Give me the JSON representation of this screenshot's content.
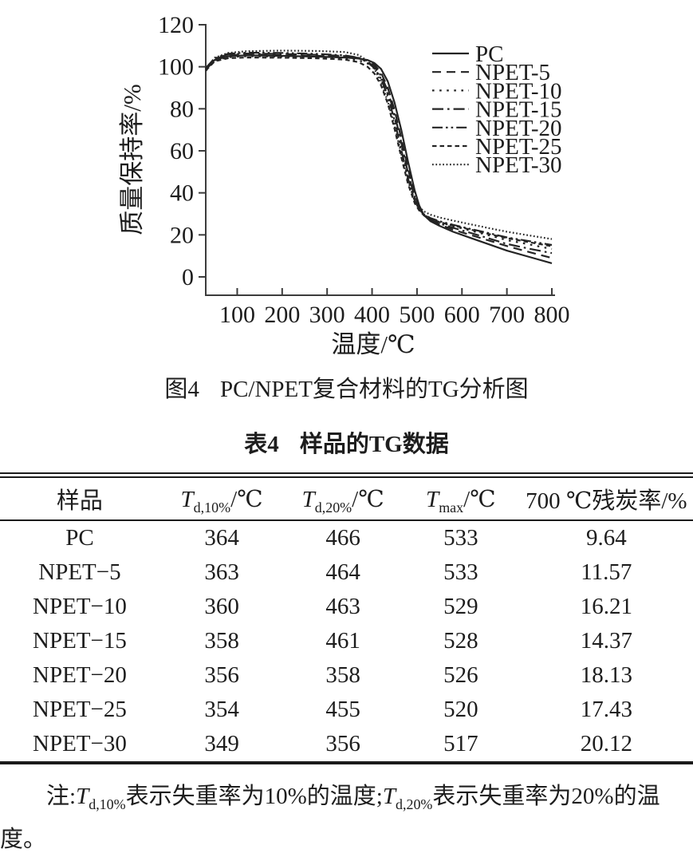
{
  "figure": {
    "caption_label": "图4",
    "caption_text": "PC/NPET复合材料的TG分析图"
  },
  "chart_data": {
    "type": "line",
    "title": "",
    "xlabel": "温度/℃",
    "ylabel": "质量保持率/%",
    "xlim": [
      30,
      800
    ],
    "ylim": [
      -9,
      120
    ],
    "x_ticks": [
      100,
      200,
      300,
      400,
      500,
      600,
      700,
      800
    ],
    "y_ticks": [
      0,
      20,
      40,
      60,
      80,
      100,
      120
    ],
    "grid": false,
    "legend_position": "upper-right-inside",
    "x": [
      30,
      50,
      80,
      120,
      200,
      280,
      340,
      370,
      390,
      405,
      420,
      435,
      450,
      465,
      480,
      495,
      505,
      515,
      530,
      550,
      580,
      620,
      660,
      700,
      750,
      800
    ],
    "series": [
      {
        "name": "PC",
        "line_style": "solid",
        "values": [
          98.5,
          103.3,
          105.0,
          105.4,
          105.2,
          104.8,
          104.4,
          103.9,
          103.2,
          101.8,
          99.0,
          93.0,
          83.0,
          70.0,
          55.0,
          41.0,
          34.0,
          29.5,
          26.5,
          24.3,
          21.5,
          18.5,
          15.5,
          12.5,
          9.5,
          6.5
        ]
      },
      {
        "name": "NPET-5",
        "line_style": "dashed",
        "values": [
          99.0,
          103.7,
          105.5,
          105.9,
          105.7,
          105.2,
          104.7,
          104.0,
          102.9,
          101.0,
          97.2,
          90.0,
          79.5,
          66.0,
          51.5,
          39.0,
          33.0,
          29.3,
          27.0,
          25.0,
          22.5,
          19.9,
          17.3,
          14.7,
          11.8,
          9.0
        ]
      },
      {
        "name": "NPET-10",
        "line_style": "dotted",
        "values": [
          98.0,
          102.9,
          104.6,
          105.0,
          104.9,
          104.5,
          104.0,
          103.1,
          101.6,
          99.2,
          94.8,
          87.0,
          76.0,
          62.5,
          48.5,
          37.0,
          32.3,
          29.6,
          27.7,
          26.0,
          24.2,
          22.0,
          19.8,
          17.5,
          15.4,
          13.3
        ]
      },
      {
        "name": "NPET-15",
        "line_style": "dash-dot",
        "values": [
          99.2,
          103.9,
          105.9,
          106.3,
          106.1,
          105.7,
          105.1,
          104.2,
          102.4,
          100.0,
          95.8,
          88.5,
          77.5,
          64.0,
          49.5,
          37.8,
          32.6,
          29.4,
          27.3,
          25.4,
          23.4,
          20.9,
          18.3,
          15.7,
          13.4,
          11.3
        ]
      },
      {
        "name": "NPET-20",
        "line_style": "dash-dot-dot",
        "values": [
          99.4,
          104.1,
          106.2,
          106.7,
          106.6,
          106.1,
          105.4,
          104.3,
          102.1,
          99.4,
          94.2,
          86.0,
          74.5,
          60.5,
          46.8,
          36.3,
          32.0,
          29.8,
          28.0,
          26.5,
          24.8,
          22.8,
          20.8,
          18.8,
          17.0,
          15.2
        ]
      },
      {
        "name": "NPET-25",
        "line_style": "short-dash",
        "values": [
          98.2,
          102.6,
          104.1,
          104.4,
          104.3,
          104.0,
          103.4,
          102.2,
          100.0,
          96.8,
          91.2,
          82.5,
          70.5,
          57.0,
          44.3,
          35.0,
          31.6,
          29.4,
          27.7,
          26.1,
          24.4,
          22.5,
          20.4,
          18.5,
          16.5,
          14.6
        ]
      },
      {
        "name": "NPET-30",
        "line_style": "fine-dot",
        "values": [
          99.0,
          104.3,
          106.6,
          107.4,
          107.7,
          107.5,
          107.0,
          105.6,
          102.8,
          99.0,
          92.5,
          83.5,
          72.0,
          58.5,
          45.8,
          35.8,
          33.4,
          31.2,
          29.6,
          28.3,
          26.8,
          25.0,
          23.2,
          21.5,
          19.7,
          18.0
        ]
      }
    ]
  },
  "table": {
    "title_label": "表4",
    "title_text": "样品的TG数据",
    "columns": [
      {
        "type": "plain",
        "label": "样品"
      },
      {
        "type": "tsub",
        "main": "T",
        "sub": "d,10%",
        "unit": "/℃"
      },
      {
        "type": "tsub",
        "main": "T",
        "sub": "d,20%",
        "unit": "/℃"
      },
      {
        "type": "tsub",
        "main": "T",
        "sub": "max",
        "unit": "/℃"
      },
      {
        "type": "plain",
        "label": "700 ℃残炭率/%"
      }
    ],
    "rows": [
      [
        "PC",
        "364",
        "466",
        "533",
        "9.64"
      ],
      [
        "NPET−5",
        "363",
        "464",
        "533",
        "11.57"
      ],
      [
        "NPET−10",
        "360",
        "463",
        "529",
        "16.21"
      ],
      [
        "NPET−15",
        "358",
        "461",
        "528",
        "14.37"
      ],
      [
        "NPET−20",
        "356",
        "358",
        "526",
        "18.13"
      ],
      [
        "NPET−25",
        "354",
        "455",
        "520",
        "17.43"
      ],
      [
        "NPET−30",
        "349",
        "356",
        "517",
        "20.12"
      ]
    ]
  },
  "note": {
    "parts": [
      {
        "text": "注:",
        "style": "plain"
      },
      {
        "text": "T",
        "style": "italic"
      },
      {
        "text": "d,10%",
        "style": "sub"
      },
      {
        "text": "表示失重率为10%的温度;",
        "style": "plain"
      },
      {
        "text": "T",
        "style": "italic"
      },
      {
        "text": "d,20%",
        "style": "sub"
      },
      {
        "text": "表示失重率为20%的温度。",
        "style": "plain"
      }
    ]
  },
  "colors": {
    "text": "#1d1d1d",
    "line": "#242424",
    "background": "#ffffff"
  }
}
